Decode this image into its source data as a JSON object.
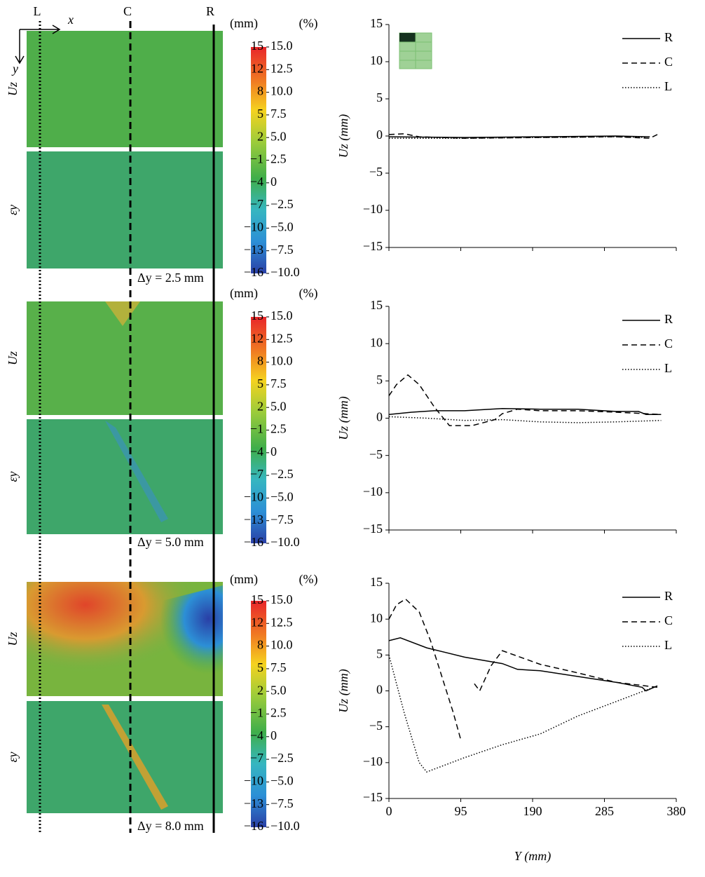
{
  "figure": {
    "line_labels": [
      "L",
      "C",
      "R"
    ],
    "axis_labels": {
      "x": "x",
      "y": "y"
    },
    "panels": [
      {
        "map_labels": [
          "Uz",
          "εy"
        ],
        "units": [
          "(mm)",
          "(%)"
        ],
        "mm_ticks": [
          15,
          12,
          8,
          5,
          2,
          {
            "value": -1,
            "label": "−1"
          },
          {
            "value": -4,
            "label": "−4"
          },
          {
            "value": -7,
            "label": "−7"
          },
          {
            "value": -10,
            "label": "−10"
          },
          {
            "value": -13,
            "label": "−13"
          },
          {
            "value": -16,
            "label": "−16"
          }
        ],
        "pct_ticks": [
          {
            "value": 15,
            "label": "15.0"
          },
          12.5,
          {
            "value": 10,
            "label": "10.0"
          },
          7.5,
          {
            "value": 5,
            "label": "5.0"
          },
          2.5,
          0,
          {
            "value": -2.5,
            "label": "−2.5"
          },
          {
            "value": -5,
            "label": "−5.0"
          },
          {
            "value": -7.5,
            "label": "−7.5"
          },
          {
            "value": -10,
            "label": "−10.0"
          }
        ],
        "displacement": "Δy = 2.5 mm"
      },
      {
        "map_labels": [
          "Uz",
          "εy"
        ],
        "units": [
          "(mm)",
          "(%)"
        ],
        "mm_ticks": [
          15,
          12,
          8,
          5,
          2,
          {
            "value": -1,
            "label": "−1"
          },
          {
            "value": -4,
            "label": "−4"
          },
          {
            "value": -7,
            "label": "−7"
          },
          {
            "value": -10,
            "label": "−10"
          },
          {
            "value": -13,
            "label": "−13"
          },
          {
            "value": -16,
            "label": "−16"
          }
        ],
        "pct_ticks": [
          {
            "value": 15,
            "label": "15.0"
          },
          12.5,
          {
            "value": 10,
            "label": "10.0"
          },
          7.5,
          {
            "value": 5,
            "label": "5.0"
          },
          2.5,
          0,
          {
            "value": -2.5,
            "label": "−2.5"
          },
          {
            "value": -5,
            "label": "−5.0"
          },
          {
            "value": -7.5,
            "label": "−7.5"
          },
          {
            "value": -10,
            "label": "−10.0"
          }
        ],
        "displacement": "Δy = 5.0 mm"
      },
      {
        "map_labels": [
          "Uz",
          "εy"
        ],
        "units": [
          "(mm)",
          "(%)"
        ],
        "mm_ticks": [
          15,
          12,
          8,
          5,
          2,
          {
            "value": -1,
            "label": "−1"
          },
          {
            "value": -4,
            "label": "−4"
          },
          {
            "value": -7,
            "label": "−7"
          },
          {
            "value": -10,
            "label": "−10"
          },
          {
            "value": -13,
            "label": "−13"
          },
          {
            "value": -16,
            "label": "−16"
          }
        ],
        "pct_ticks": [
          {
            "value": 15,
            "label": "15.0"
          },
          12.5,
          {
            "value": 10,
            "label": "10.0"
          },
          7.5,
          {
            "value": 5,
            "label": "5.0"
          },
          2.5,
          0,
          {
            "value": -2.5,
            "label": "−2.5"
          },
          {
            "value": -5,
            "label": "−5.0"
          },
          {
            "value": -7.5,
            "label": "−7.5"
          },
          {
            "value": -10,
            "label": "−10.0"
          }
        ],
        "displacement": "Δy = 8.0 mm"
      }
    ]
  },
  "chart_data": [
    {
      "type": "line",
      "ylabel": "Uz (mm)",
      "xlim": [
        0,
        380
      ],
      "ylim": [
        -15,
        15
      ],
      "xticks": [
        0,
        95,
        190,
        285,
        380
      ],
      "show_x_tick_labels": false,
      "yticks": [
        15,
        10,
        5,
        0,
        {
          "value": -5,
          "label": "−5"
        },
        {
          "value": -10,
          "label": "−10"
        },
        {
          "value": -15,
          "label": "−15"
        }
      ],
      "series": [
        {
          "name": "R",
          "color": "#000000",
          "linestyle": "solid",
          "x": [
            0,
            100,
            200,
            300,
            345
          ],
          "values": [
            -0.1,
            -0.2,
            -0.1,
            0,
            -0.1
          ]
        },
        {
          "name": "C",
          "color": "#000000",
          "linestyle": "dashed",
          "x": [
            0,
            20,
            40,
            100,
            200,
            300,
            345,
            355
          ],
          "values": [
            0.2,
            0.3,
            -0.1,
            -0.3,
            -0.2,
            -0.1,
            -0.3,
            0.2
          ]
        },
        {
          "name": "L",
          "color": "#000000",
          "linestyle": "dotted",
          "x": [
            0,
            100,
            200,
            300,
            340
          ],
          "values": [
            -0.3,
            -0.3,
            -0.2,
            -0.1,
            -0.2
          ]
        }
      ]
    },
    {
      "type": "line",
      "ylabel": "Uz (mm)",
      "xlim": [
        0,
        380
      ],
      "ylim": [
        -15,
        15
      ],
      "xticks": [
        0,
        95,
        190,
        285,
        380
      ],
      "show_x_tick_labels": false,
      "yticks": [
        15,
        10,
        5,
        0,
        {
          "value": -5,
          "label": "−5"
        },
        {
          "value": -10,
          "label": "−10"
        },
        {
          "value": -15,
          "label": "−15"
        }
      ],
      "series": [
        {
          "name": "R",
          "color": "#000000",
          "linestyle": "solid",
          "x": [
            0,
            30,
            60,
            100,
            150,
            200,
            250,
            300,
            330,
            340,
            360
          ],
          "values": [
            0.5,
            0.8,
            1,
            1,
            1.3,
            1.2,
            1.2,
            0.9,
            0.9,
            0.5,
            0.5
          ]
        },
        {
          "name": "C",
          "color": "#000000",
          "linestyle": "dashed",
          "x": [
            0,
            10,
            25,
            40,
            60,
            80,
            110,
            140,
            150,
            170,
            200,
            250,
            300,
            360
          ],
          "values": [
            3,
            4.5,
            5.8,
            4.5,
            1.5,
            -1,
            -1,
            -0.2,
            0.6,
            1.2,
            1,
            1,
            0.8,
            0.5
          ]
        },
        {
          "name": "L",
          "color": "#000000",
          "linestyle": "dotted",
          "x": [
            0,
            50,
            100,
            150,
            200,
            250,
            300,
            360
          ],
          "values": [
            0.2,
            0,
            -0.3,
            -0.2,
            -0.5,
            -0.6,
            -0.5,
            -0.3
          ]
        }
      ]
    },
    {
      "type": "line",
      "ylabel": "Uz (mm)",
      "xlabel": "Y (mm)",
      "xlim": [
        0,
        380
      ],
      "ylim": [
        -15,
        15
      ],
      "xticks": [
        0,
        95,
        190,
        285,
        380
      ],
      "show_x_tick_labels": true,
      "yticks": [
        15,
        10,
        5,
        0,
        {
          "value": -5,
          "label": "−5"
        },
        {
          "value": -10,
          "label": "−10"
        },
        {
          "value": -15,
          "label": "−15"
        }
      ],
      "series": [
        {
          "name": "R",
          "color": "#000000",
          "linestyle": "solid",
          "x": [
            0,
            15,
            50,
            100,
            150,
            170,
            200,
            250,
            300,
            335,
            340,
            355
          ],
          "values": [
            7,
            7.4,
            6,
            4.7,
            3.8,
            3,
            2.8,
            2,
            1.2,
            0.5,
            0,
            0.7
          ]
        },
        {
          "name": "C",
          "color": "#000000",
          "linestyle": "dashed",
          "x": [
            0,
            10,
            22,
            40,
            55,
            70,
            85,
            95,
            104,
            113,
            120,
            135,
            150,
            200,
            250,
            300,
            355
          ],
          "values": [
            10,
            12,
            12.8,
            11,
            7,
            2,
            -3,
            -6.8,
            null,
            1,
            0,
            3.5,
            5.6,
            3.7,
            2.5,
            1.2,
            0.5
          ]
        },
        {
          "name": "L",
          "color": "#000000",
          "linestyle": "dotted",
          "x": [
            0,
            20,
            40,
            50,
            70,
            100,
            150,
            200,
            250,
            300,
            350
          ],
          "values": [
            5,
            -3,
            -10,
            -11.3,
            -10.5,
            -9.3,
            -7.5,
            -6,
            -3.5,
            -1.5,
            0.5
          ]
        }
      ]
    }
  ]
}
